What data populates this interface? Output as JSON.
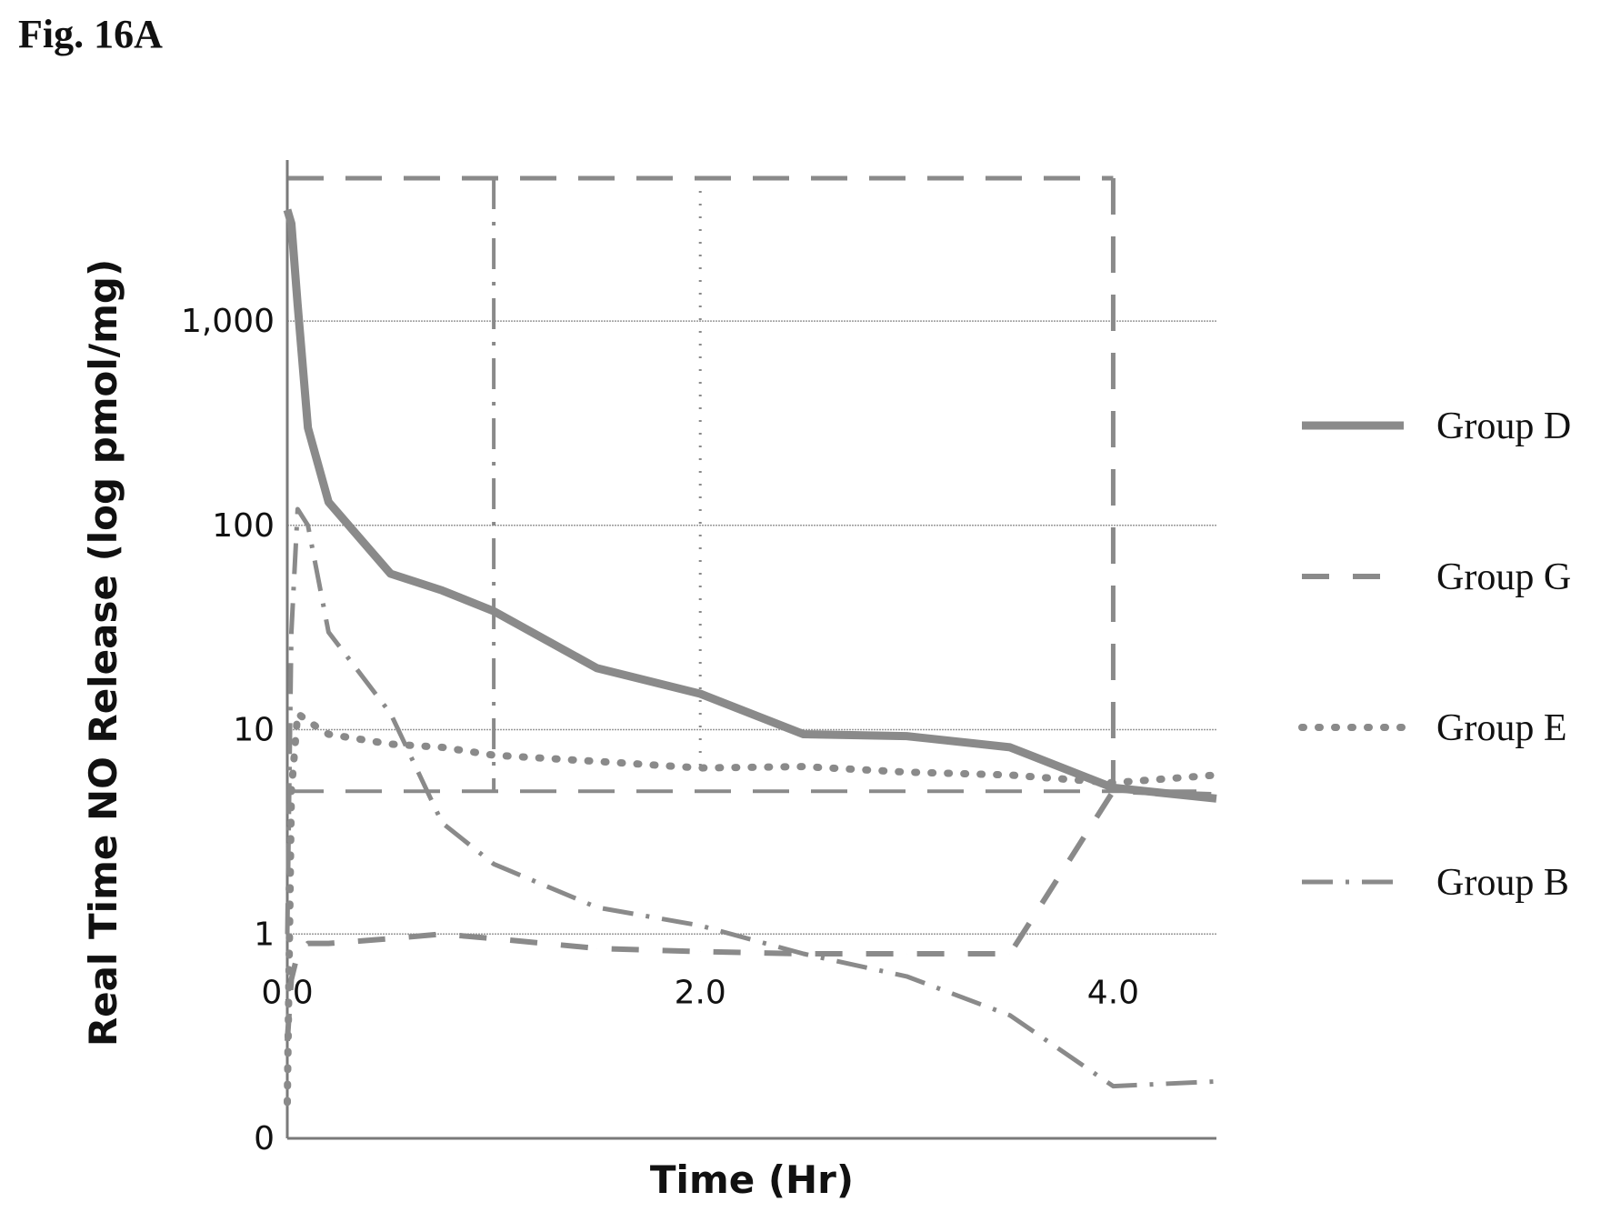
{
  "figure_label": "Fig. 16A",
  "colors": {
    "series": "#8a8a8a",
    "grid": "#9a9a9a",
    "axis": "#7a7a7a",
    "text": "#111111"
  },
  "chart_data": {
    "type": "line",
    "title": "",
    "xlabel": "Time (Hr)",
    "ylabel": "Real Time NO Release (log pmol/mg)",
    "y_scale": "log",
    "xlim": [
      0,
      4.5
    ],
    "ylim": [
      0.1,
      5000
    ],
    "grid": true,
    "legend_position": "right",
    "x_ticks": [
      {
        "value": 0,
        "label": "0.0"
      },
      {
        "value": 2,
        "label": "2.0"
      },
      {
        "value": 4,
        "label": "4.0"
      }
    ],
    "y_ticks": [
      {
        "value": 0.1,
        "label": "0"
      },
      {
        "value": 1,
        "label": "1"
      },
      {
        "value": 10,
        "label": "10"
      },
      {
        "value": 100,
        "label": "100"
      },
      {
        "value": 1000,
        "label": "1,000"
      }
    ],
    "series": [
      {
        "name": "Group D",
        "style": "solid",
        "x": [
          0,
          0.02,
          0.05,
          0.1,
          0.2,
          0.5,
          0.75,
          1.0,
          1.5,
          2.0,
          2.5,
          3.0,
          3.5,
          4.0,
          4.5
        ],
        "y": [
          3500,
          3000,
          1200,
          300,
          130,
          58,
          48,
          38,
          20,
          15,
          9.5,
          9.3,
          8.2,
          5.2,
          4.6
        ]
      },
      {
        "name": "Group G",
        "style": "dashed",
        "x": [
          0,
          0.02,
          0.05,
          0.1,
          0.2,
          0.5,
          0.75,
          1.0,
          1.5,
          2.0,
          2.5,
          3.0,
          3.5,
          4.0,
          4.5
        ],
        "y": [
          0.3,
          0.6,
          0.8,
          0.9,
          0.9,
          0.95,
          1.0,
          0.95,
          0.85,
          0.82,
          0.8,
          0.8,
          0.8,
          5.0,
          4.8
        ]
      },
      {
        "name": "Group E",
        "style": "dotted",
        "x": [
          0,
          0.02,
          0.05,
          0.1,
          0.2,
          0.5,
          0.75,
          1.0,
          1.5,
          2.0,
          2.5,
          3.0,
          3.5,
          4.0,
          4.5
        ],
        "y": [
          0.15,
          5,
          12,
          11,
          9.5,
          8.5,
          8.2,
          7.5,
          7.0,
          6.5,
          6.6,
          6.2,
          6.0,
          5.5,
          6.0
        ]
      },
      {
        "name": "Group B",
        "style": "dashdot",
        "x": [
          0,
          0.02,
          0.05,
          0.1,
          0.2,
          0.5,
          0.75,
          1.0,
          1.5,
          2.0,
          2.5,
          3.0,
          3.5,
          4.0,
          4.5
        ],
        "y": [
          1.0,
          30,
          120,
          100,
          30,
          12,
          3.5,
          2.2,
          1.35,
          1.1,
          0.8,
          0.62,
          0.4,
          0.18,
          0.19
        ]
      }
    ]
  }
}
